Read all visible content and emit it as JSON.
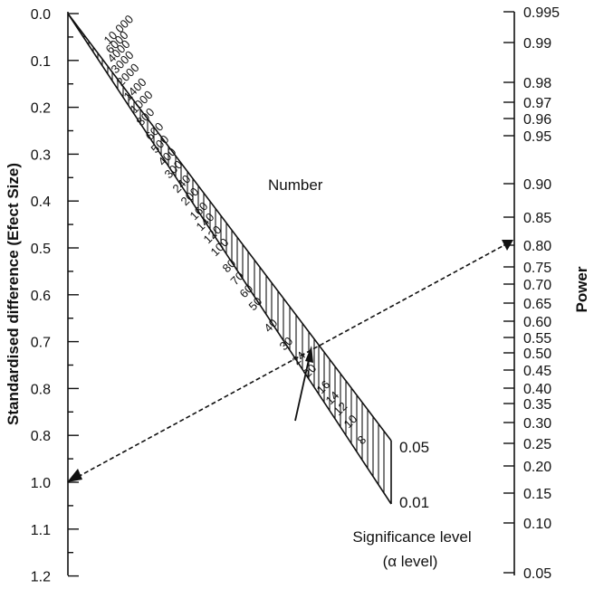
{
  "left_axis": {
    "title": "Standardised difference (Efect Size)",
    "labels": [
      "0.0",
      "0.1",
      "0.2",
      "0.3",
      "0.4",
      "0.5",
      "0.6",
      "0.7",
      "0.8",
      "0.8",
      "1.0",
      "1.1",
      "1.2"
    ]
  },
  "right_axis": {
    "title": "Power",
    "labels": [
      "0.995",
      "0.99",
      "0.98",
      "0.97",
      "0.96",
      "0.95",
      "0.90",
      "0.85",
      "0.80",
      "0.75",
      "0.70",
      "0.65",
      "0.60",
      "0.55",
      "0.50",
      "0.45",
      "0.40",
      "0.35",
      "0.30",
      "0.25",
      "0.20",
      "0.15",
      "0.10",
      "0.05"
    ]
  },
  "number_scale": {
    "title": "Number",
    "labels": [
      "10 000",
      "6000",
      "4000",
      "3000",
      "2000",
      "1400",
      "1000",
      "800",
      "600",
      "500",
      "400",
      "300",
      "240",
      "200",
      "160",
      "140",
      "120",
      "100",
      "80",
      "70",
      "60",
      "50",
      "40",
      "30",
      "24",
      "20",
      "16",
      "14",
      "12",
      "10",
      "8"
    ]
  },
  "significance": {
    "title_line1": "Significance level",
    "title_line2": "(α level)",
    "level_high": "0.05",
    "level_low": "0.01"
  }
}
